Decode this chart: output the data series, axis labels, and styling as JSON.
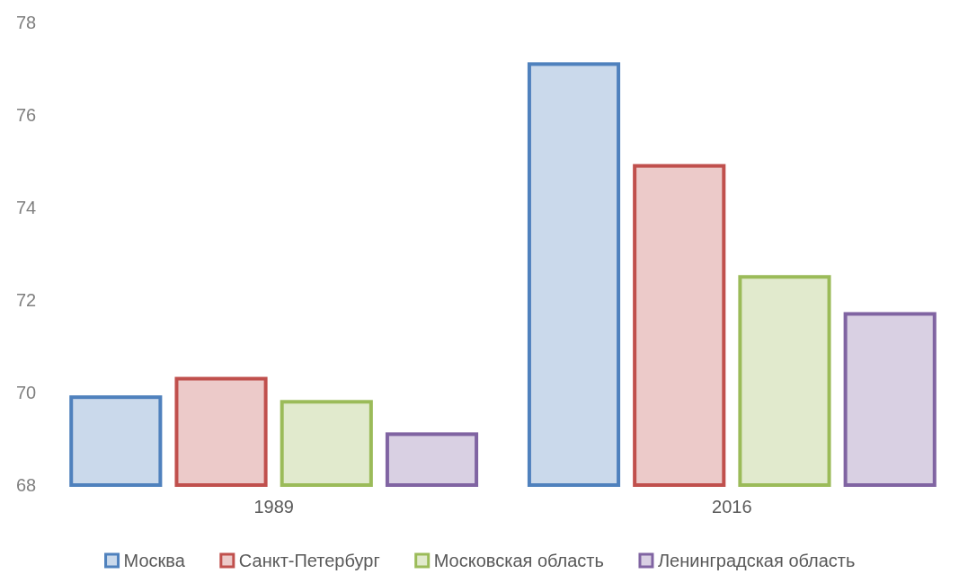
{
  "chart_data": {
    "type": "bar",
    "categories": [
      "1989",
      "2016"
    ],
    "series": [
      {
        "name": "Москва",
        "color": "#4f81bd",
        "values": [
          69.9,
          77.1
        ]
      },
      {
        "name": "Санкт-Петербург",
        "color": "#c0504d",
        "values": [
          70.3,
          74.9
        ]
      },
      {
        "name": "Московская область",
        "color": "#9bbb59",
        "values": [
          69.8,
          72.5
        ]
      },
      {
        "name": "Ленинградская область",
        "color": "#8064a2",
        "values": [
          69.1,
          71.7
        ]
      }
    ],
    "ylim": [
      68,
      78
    ],
    "yticks": [
      68,
      70,
      72,
      74,
      76,
      78
    ],
    "grid": false,
    "legend": "bottom"
  }
}
